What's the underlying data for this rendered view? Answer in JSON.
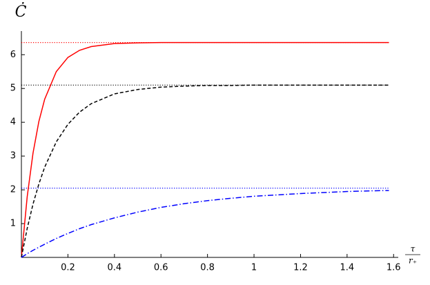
{
  "chart_data": {
    "type": "line",
    "y_label": "Ċ",
    "x_label": {
      "numerator": "τ",
      "denominator": "r₊"
    },
    "x": [
      0,
      0.025,
      0.05,
      0.075,
      0.1,
      0.15,
      0.2,
      0.25,
      0.3,
      0.4,
      0.5,
      0.6,
      0.7,
      0.8,
      0.9,
      1.0,
      1.1,
      1.2,
      1.3,
      1.4,
      1.5,
      1.58
    ],
    "series": [
      {
        "color": "#ff0000",
        "linestyle": "solid",
        "values": [
          0,
          1.8,
          3.09,
          4.02,
          4.68,
          5.5,
          5.92,
          6.13,
          6.24,
          6.33,
          6.35,
          6.36,
          6.36,
          6.36,
          6.36,
          6.36,
          6.36,
          6.36,
          6.36,
          6.36,
          6.36,
          6.36
        ]
      },
      {
        "color": "#000000",
        "linestyle": "dashed",
        "values": [
          0,
          0.86,
          1.58,
          2.17,
          2.67,
          3.42,
          3.94,
          4.3,
          4.55,
          4.84,
          4.97,
          5.04,
          5.07,
          5.09,
          5.09,
          5.1,
          5.1,
          5.1,
          5.1,
          5.1,
          5.1,
          5.1
        ]
      },
      {
        "color": "#0000ff",
        "linestyle": "dashdot",
        "values": [
          0,
          0.11,
          0.21,
          0.3,
          0.39,
          0.56,
          0.71,
          0.85,
          0.97,
          1.17,
          1.34,
          1.48,
          1.59,
          1.68,
          1.75,
          1.81,
          1.85,
          1.89,
          1.92,
          1.95,
          1.97,
          1.98
        ]
      }
    ],
    "hlines": [
      {
        "value": 6.36,
        "color": "#ff0000"
      },
      {
        "value": 5.1,
        "color": "#000000"
      },
      {
        "value": 2.05,
        "color": "#0000ff"
      }
    ],
    "xlim": [
      0,
      1.62
    ],
    "ylim": [
      0,
      6.7
    ],
    "xticks": [
      0.2,
      0.4,
      0.6,
      0.8,
      1,
      1.2,
      1.4,
      1.6
    ],
    "yticks": [
      1,
      2,
      3,
      4,
      5,
      6
    ]
  }
}
